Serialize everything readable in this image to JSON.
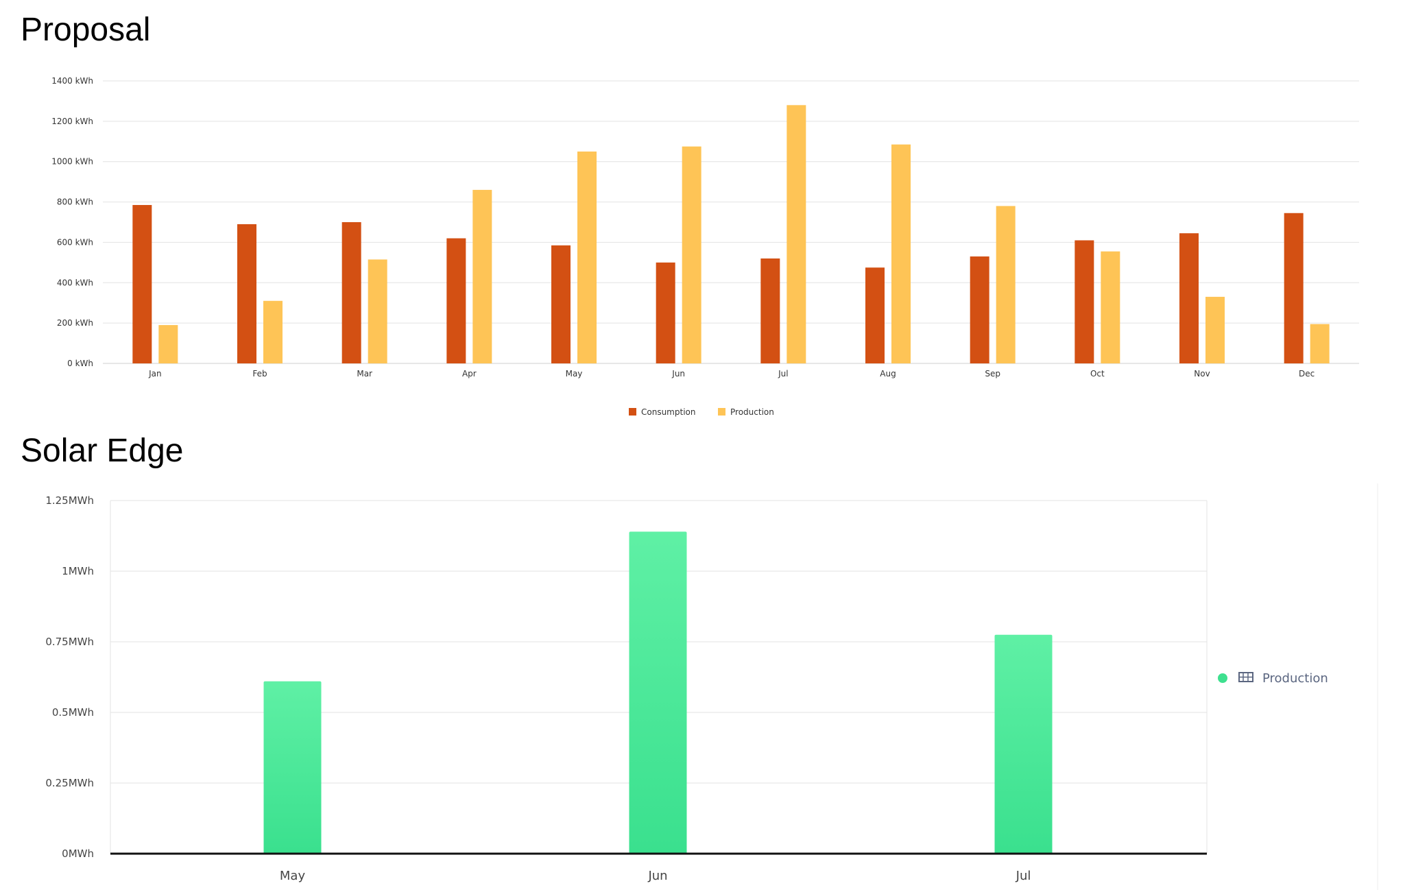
{
  "chart_data": [
    {
      "type": "bar",
      "title": "Proposal",
      "categories": [
        "Jan",
        "Feb",
        "Mar",
        "Apr",
        "May",
        "Jun",
        "Jul",
        "Aug",
        "Sep",
        "Oct",
        "Nov",
        "Dec"
      ],
      "series": [
        {
          "name": "Consumption",
          "color": "#d35013",
          "values": [
            785,
            690,
            700,
            620,
            585,
            500,
            520,
            475,
            530,
            610,
            645,
            745
          ]
        },
        {
          "name": "Production",
          "color": "#fec456",
          "values": [
            190,
            310,
            515,
            860,
            1050,
            1075,
            1280,
            1085,
            780,
            555,
            330,
            195
          ]
        }
      ],
      "y_ticks": [
        "0 kWh",
        "200 kWh",
        "400 kWh",
        "600 kWh",
        "800 kWh",
        "1000 kWh",
        "1200 kWh",
        "1400 kWh"
      ],
      "ylim": [
        0,
        1400
      ],
      "grid": true,
      "legend": "bottom-center"
    },
    {
      "type": "bar",
      "title": "Solar Edge",
      "categories": [
        "May",
        "Jun",
        "Jul"
      ],
      "series": [
        {
          "name": "Production",
          "color": "#3ee08f",
          "values": [
            0.61,
            1.14,
            0.775
          ]
        }
      ],
      "y_ticks": [
        "0MWh",
        "0.25MWh",
        "0.5MWh",
        "0.75MWh",
        "1MWh",
        "1.25MWh"
      ],
      "ylim": [
        0,
        1.25
      ],
      "grid": true,
      "legend": "right"
    }
  ]
}
